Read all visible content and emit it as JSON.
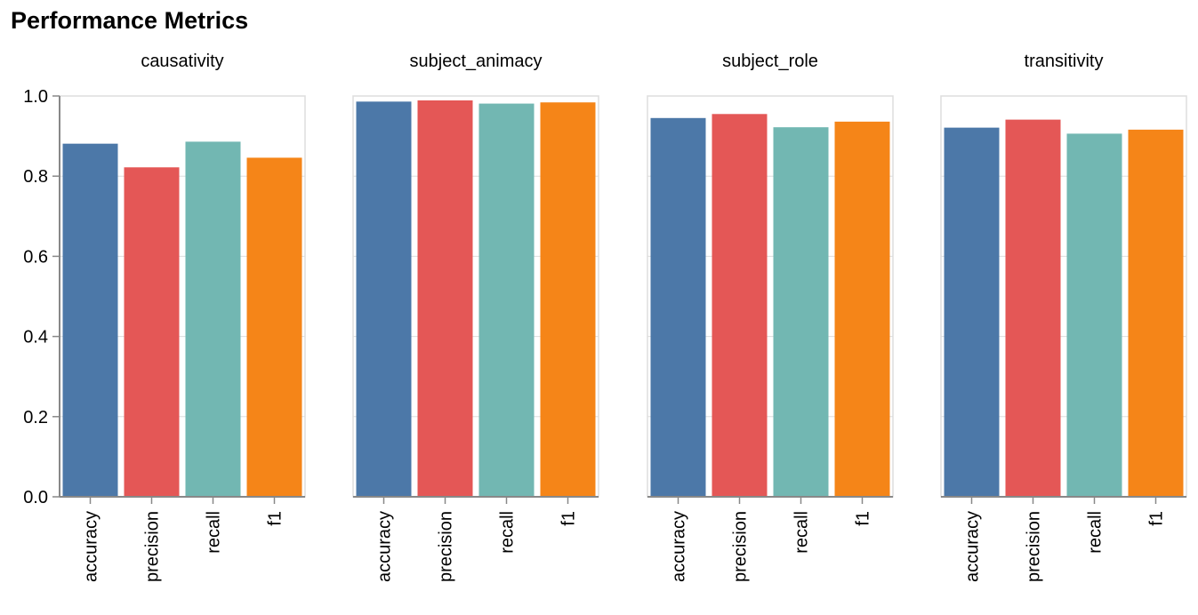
{
  "title": "Performance Metrics",
  "chart_data": {
    "type": "bar",
    "title": "Performance Metrics",
    "facet_field": "task",
    "categories": [
      "accuracy",
      "precision",
      "recall",
      "f1"
    ],
    "ylim": [
      0,
      1
    ],
    "yticks": [
      "0.0",
      "0.2",
      "0.4",
      "0.6",
      "0.8",
      "1.0"
    ],
    "grid": true,
    "legend": "none",
    "colors": {
      "accuracy": "#4c78a8",
      "precision": "#e45756",
      "recall": "#72b7b2",
      "f1": "#f58518"
    },
    "facets": [
      {
        "name": "causativity",
        "values": [
          0.881,
          0.822,
          0.886,
          0.846
        ]
      },
      {
        "name": "subject_animacy",
        "values": [
          0.986,
          0.989,
          0.981,
          0.984
        ]
      },
      {
        "name": "subject_role",
        "values": [
          0.945,
          0.955,
          0.922,
          0.936
        ]
      },
      {
        "name": "transitivity",
        "values": [
          0.921,
          0.941,
          0.906,
          0.916
        ]
      }
    ]
  }
}
